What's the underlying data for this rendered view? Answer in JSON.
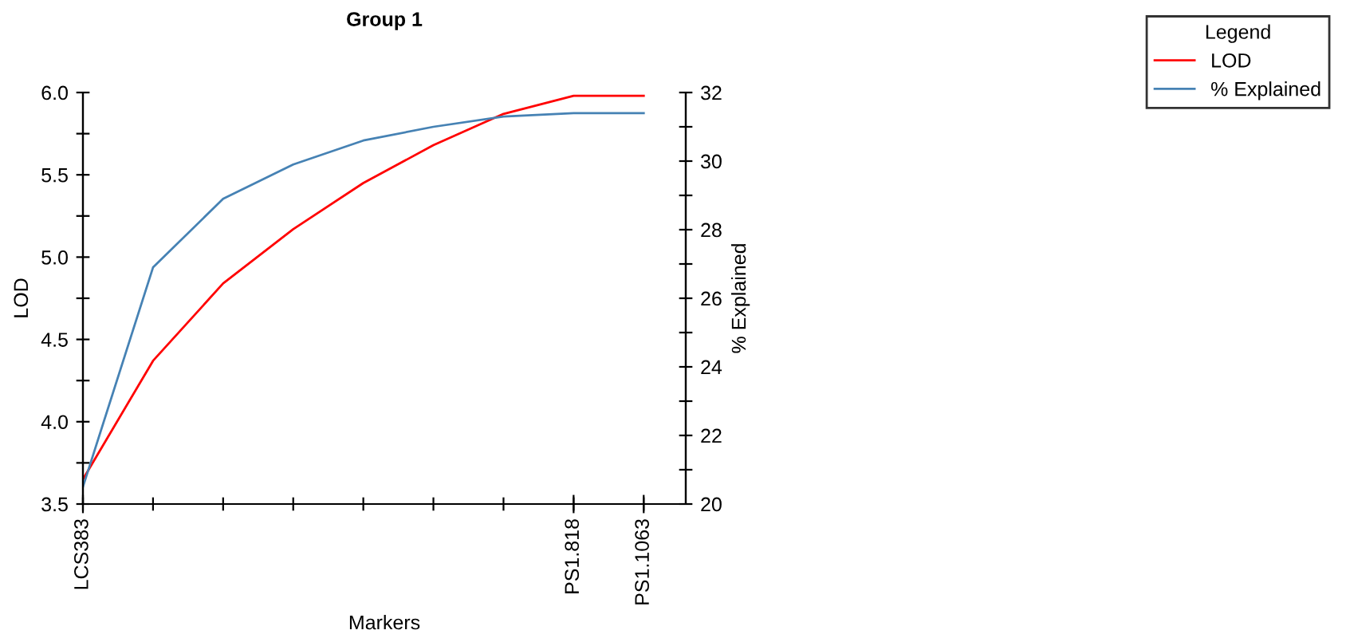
{
  "chart_data": {
    "type": "line",
    "title": "Group 1",
    "xlabel": "Markers",
    "ylabel": "LOD",
    "y2label": "% Explained",
    "legend_title": "Legend",
    "legend": "top right",
    "grid": false,
    "marker": "none",
    "line_style": "solid",
    "categories": [
      "LCS383",
      null,
      null,
      null,
      null,
      null,
      null,
      "PS1.818",
      "PS1.1063"
    ],
    "ylim": [
      3.5,
      6.0
    ],
    "yticks": [
      3.5,
      {
        "value": 3.75,
        "label": null
      },
      {
        "value": 4,
        "label": "4.0"
      },
      {
        "value": 4.25,
        "label": null
      },
      4.5,
      {
        "value": 4.75,
        "label": null
      },
      {
        "value": 5,
        "label": "5.0"
      },
      {
        "value": 5.25,
        "label": null
      },
      5.5,
      {
        "value": 5.75,
        "label": null
      },
      {
        "value": 6,
        "label": "6.0"
      }
    ],
    "y2lim": [
      20,
      32
    ],
    "y2ticks": [
      20,
      {
        "value": 21,
        "label": null
      },
      22,
      {
        "value": 23,
        "label": null
      },
      24,
      {
        "value": 25,
        "label": null
      },
      26,
      {
        "value": 27,
        "label": null
      },
      28,
      {
        "value": 29,
        "label": null
      },
      30,
      {
        "value": 31,
        "label": null
      },
      32
    ],
    "series": [
      {
        "name": "LOD",
        "color": "#ff0000",
        "values": [
          3.65,
          4.37,
          4.84,
          5.17,
          5.45,
          5.68,
          5.87,
          5.98,
          5.98
        ]
      },
      {
        "name": "% Explained",
        "color": "#4682b4",
        "axis": "y2",
        "values": [
          20.5,
          26.9,
          28.9,
          29.9,
          30.6,
          31.0,
          31.3,
          31.4,
          31.4
        ]
      }
    ]
  }
}
